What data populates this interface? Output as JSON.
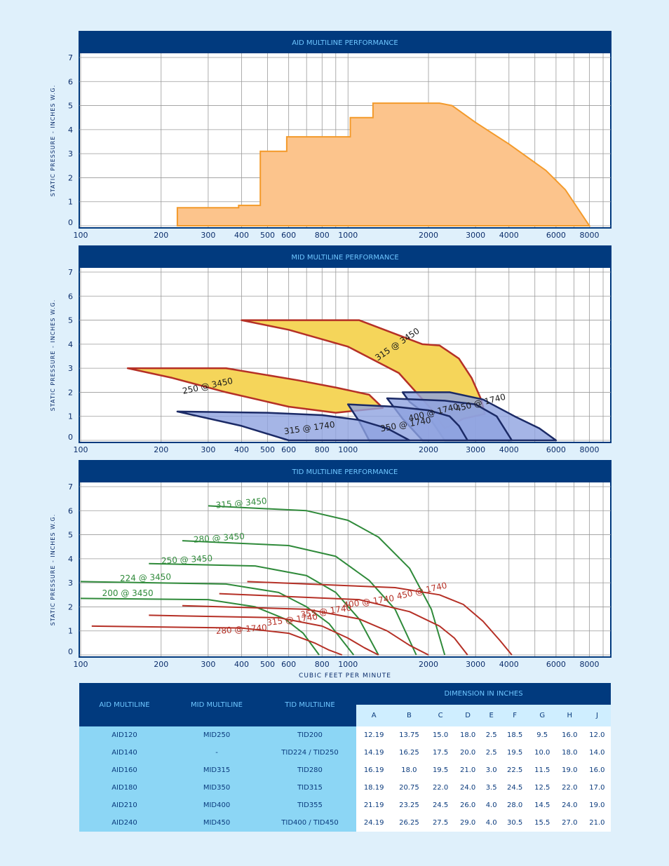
{
  "charts": [
    {
      "title": "AID MULTILINE PERFORMANCE",
      "ylabel": "STATIC PRESSURE - INCHES W.G."
    },
    {
      "title": "MID MULTILINE PERFORMANCE",
      "ylabel": "STATIC PRESSURE - INCHES W.G."
    },
    {
      "title": "TID MULTILINE PERFORMANCE",
      "ylabel": "STATIC PRESSURE - INCHES W.G."
    }
  ],
  "xlabel": "CUBIC FEET PER MINUTE",
  "x_ticks": [
    "100",
    "200",
    "300",
    "400",
    "500",
    "600",
    "800",
    "1000",
    "2000",
    "3000",
    "4000",
    "6000",
    "8000"
  ],
  "y_ticks": [
    "0",
    "1",
    "2",
    "3",
    "4",
    "5",
    "6",
    "7"
  ],
  "colors": {
    "header": "#013a7e",
    "header_text": "#6fc6ff",
    "aid_fill": "#fcc48c",
    "aid_line": "#f39a2a",
    "yellow": "#f5d55a",
    "blue": "#8fa3e0",
    "green": "#2f8a3a",
    "red": "#b53026",
    "navy": "#1b2a66"
  },
  "chart_data": [
    {
      "type": "area",
      "title": "AID MULTILINE PERFORMANCE",
      "ylabel": "STATIC PRESSURE - INCHES W.G.",
      "x_scale": "log",
      "xlim": [
        100,
        9500
      ],
      "ylim": [
        0,
        7
      ],
      "series": [
        {
          "points": [
            [
              230,
              0
            ],
            [
              230,
              0.75
            ],
            [
              390,
              0.75
            ],
            [
              390,
              0.85
            ],
            [
              470,
              0.85
            ],
            [
              470,
              3.1
            ],
            [
              590,
              3.1
            ],
            [
              590,
              3.7
            ],
            [
              1020,
              3.7
            ],
            [
              1020,
              4.5
            ],
            [
              1240,
              4.5
            ],
            [
              1240,
              5.1
            ],
            [
              2200,
              5.1
            ],
            [
              2450,
              5.0
            ],
            [
              3000,
              4.3
            ],
            [
              4000,
              3.4
            ],
            [
              5500,
              2.3
            ],
            [
              6500,
              1.5
            ],
            [
              8000,
              0
            ]
          ]
        }
      ]
    },
    {
      "type": "area",
      "title": "MID MULTILINE PERFORMANCE",
      "ylabel": "STATIC PRESSURE - INCHES W.G.",
      "x_scale": "log",
      "xlim": [
        100,
        9500
      ],
      "ylim": [
        0,
        7
      ],
      "series": [
        {
          "name": "315 @ 3450",
          "color": "yellow",
          "points": [
            [
              400,
              5.0
            ],
            [
              1100,
              5.0
            ],
            [
              1900,
              4.0
            ],
            [
              2200,
              3.95
            ],
            [
              2600,
              3.4
            ],
            [
              2900,
              2.6
            ],
            [
              3150,
              1.7
            ],
            [
              3250,
              1.1
            ],
            [
              2700,
              0.9
            ],
            [
              2300,
              0.5
            ],
            [
              2050,
              1.3
            ],
            [
              1550,
              2.8
            ],
            [
              1000,
              3.9
            ],
            [
              600,
              4.6
            ]
          ]
        },
        {
          "name": "250 @ 3450",
          "color": "yellow",
          "points": [
            [
              150,
              3.0
            ],
            [
              350,
              3.0
            ],
            [
              650,
              2.5
            ],
            [
              900,
              2.2
            ],
            [
              1200,
              1.9
            ],
            [
              1350,
              1.35
            ],
            [
              900,
              1.15
            ],
            [
              600,
              1.4
            ],
            [
              350,
              2.0
            ],
            [
              220,
              2.6
            ]
          ]
        },
        {
          "name": "450 @ 1740",
          "color": "blue",
          "points": [
            [
              1600,
              2.0
            ],
            [
              2400,
              2.0
            ],
            [
              3200,
              1.7
            ],
            [
              4200,
              1.0
            ],
            [
              5200,
              0.5
            ],
            [
              6000,
              0
            ],
            [
              2300,
              0
            ],
            [
              2000,
              1.0
            ],
            [
              1700,
              1.6
            ]
          ]
        },
        {
          "name": "400 @ 1740",
          "color": "blue",
          "points": [
            [
              1400,
              1.75
            ],
            [
              2300,
              1.65
            ],
            [
              3000,
              1.5
            ],
            [
              3600,
              1.0
            ],
            [
              4100,
              0
            ],
            [
              1900,
              0
            ],
            [
              1600,
              0.9
            ]
          ]
        },
        {
          "name": "350 @ 1740",
          "color": "blue",
          "points": [
            [
              1000,
              1.5
            ],
            [
              1500,
              1.4
            ],
            [
              2000,
              1.25
            ],
            [
              2400,
              1.0
            ],
            [
              2600,
              0.6
            ],
            [
              2800,
              0
            ],
            [
              1200,
              0
            ],
            [
              1100,
              0.8
            ]
          ]
        },
        {
          "name": "315 @ 1740",
          "color": "blue",
          "points": [
            [
              230,
              1.2
            ],
            [
              500,
              1.15
            ],
            [
              800,
              1.05
            ],
            [
              1100,
              0.85
            ],
            [
              1400,
              0.5
            ],
            [
              1700,
              0
            ],
            [
              600,
              0
            ],
            [
              400,
              0.6
            ]
          ]
        }
      ]
    },
    {
      "type": "line",
      "title": "TID MULTILINE PERFORMANCE",
      "ylabel": "STATIC PRESSURE - INCHES W.G.",
      "xlabel": "CUBIC FEET PER MINUTE",
      "x_scale": "log",
      "xlim": [
        100,
        9500
      ],
      "ylim": [
        0,
        7
      ],
      "series": [
        {
          "name": "315 @ 3450",
          "color": "green",
          "points": [
            [
              300,
              6.2
            ],
            [
              700,
              6.0
            ],
            [
              1000,
              5.6
            ],
            [
              1300,
              4.9
            ],
            [
              1700,
              3.6
            ],
            [
              2050,
              1.9
            ],
            [
              2300,
              0
            ]
          ]
        },
        {
          "name": "280 @ 3450",
          "color": "green",
          "points": [
            [
              240,
              4.75
            ],
            [
              600,
              4.55
            ],
            [
              900,
              4.1
            ],
            [
              1200,
              3.1
            ],
            [
              1500,
              1.9
            ],
            [
              1800,
              0
            ]
          ]
        },
        {
          "name": "250 @ 3450",
          "color": "green",
          "points": [
            [
              180,
              3.8
            ],
            [
              450,
              3.7
            ],
            [
              700,
              3.3
            ],
            [
              900,
              2.6
            ],
            [
              1100,
              1.5
            ],
            [
              1300,
              0
            ]
          ]
        },
        {
          "name": "224 @ 3450",
          "color": "green",
          "points": [
            [
              100,
              3.05
            ],
            [
              350,
              2.95
            ],
            [
              550,
              2.6
            ],
            [
              700,
              2.0
            ],
            [
              850,
              1.3
            ],
            [
              1050,
              0
            ]
          ]
        },
        {
          "name": "200 @ 3450",
          "color": "green",
          "points": [
            [
              100,
              2.35
            ],
            [
              300,
              2.3
            ],
            [
              450,
              2.0
            ],
            [
              580,
              1.5
            ],
            [
              680,
              0.9
            ],
            [
              780,
              0
            ]
          ]
        },
        {
          "name": "450 @ 1740",
          "color": "red",
          "points": [
            [
              420,
              3.05
            ],
            [
              1500,
              2.8
            ],
            [
              2200,
              2.5
            ],
            [
              2700,
              2.1
            ],
            [
              3200,
              1.4
            ],
            [
              3700,
              0.6
            ],
            [
              4100,
              0
            ]
          ]
        },
        {
          "name": "400 @ 1740",
          "color": "red",
          "points": [
            [
              330,
              2.55
            ],
            [
              1100,
              2.3
            ],
            [
              1700,
              1.8
            ],
            [
              2200,
              1.2
            ],
            [
              2500,
              0.7
            ],
            [
              2800,
              0
            ]
          ]
        },
        {
          "name": "355 @ 1740",
          "color": "red",
          "points": [
            [
              240,
              2.05
            ],
            [
              700,
              1.9
            ],
            [
              1100,
              1.5
            ],
            [
              1400,
              1.0
            ],
            [
              1700,
              0.4
            ],
            [
              2000,
              0
            ]
          ]
        },
        {
          "name": "315 @ 1740",
          "color": "red",
          "points": [
            [
              180,
              1.65
            ],
            [
              550,
              1.55
            ],
            [
              800,
              1.2
            ],
            [
              1000,
              0.7
            ],
            [
              1150,
              0.3
            ],
            [
              1300,
              0
            ]
          ]
        },
        {
          "name": "280 @ 1740",
          "color": "red",
          "points": [
            [
              110,
              1.2
            ],
            [
              400,
              1.12
            ],
            [
              600,
              0.9
            ],
            [
              750,
              0.5
            ],
            [
              850,
              0.2
            ],
            [
              950,
              0
            ]
          ]
        }
      ]
    }
  ],
  "table": {
    "headers": [
      "AID MULTILINE",
      "MID MULTILINE",
      "TID MULTILINE"
    ],
    "dim_header": "DIMENSION IN INCHES",
    "dim_cols": [
      "A",
      "B",
      "C",
      "D",
      "E",
      "F",
      "G",
      "H",
      "J"
    ],
    "rows": [
      {
        "aid": "AID120",
        "mid": "MID250",
        "tid": "TID200",
        "dims": [
          "12.19",
          "13.75",
          "15.0",
          "18.0",
          "2.5",
          "18.5",
          "9.5",
          "16.0",
          "12.0"
        ]
      },
      {
        "aid": "AID140",
        "mid": "-",
        "tid": "TID224 / TID250",
        "dims": [
          "14.19",
          "16.25",
          "17.5",
          "20.0",
          "2.5",
          "19.5",
          "10.0",
          "18.0",
          "14.0"
        ]
      },
      {
        "aid": "AID160",
        "mid": "MID315",
        "tid": "TID280",
        "dims": [
          "16.19",
          "18.0",
          "19.5",
          "21.0",
          "3.0",
          "22.5",
          "11.5",
          "19.0",
          "16.0"
        ]
      },
      {
        "aid": "AID180",
        "mid": "MID350",
        "tid": "TID315",
        "dims": [
          "18.19",
          "20.75",
          "22.0",
          "24.0",
          "3.5",
          "24.5",
          "12.5",
          "22.0",
          "17.0"
        ]
      },
      {
        "aid": "AID210",
        "mid": "MID400",
        "tid": "TID355",
        "dims": [
          "21.19",
          "23.25",
          "24.5",
          "26.0",
          "4.0",
          "28.0",
          "14.5",
          "24.0",
          "19.0"
        ]
      },
      {
        "aid": "AID240",
        "mid": "MID450",
        "tid": "TID400 / TID450",
        "dims": [
          "24.19",
          "26.25",
          "27.5",
          "29.0",
          "4.0",
          "30.5",
          "15.5",
          "27.0",
          "21.0"
        ]
      }
    ]
  }
}
